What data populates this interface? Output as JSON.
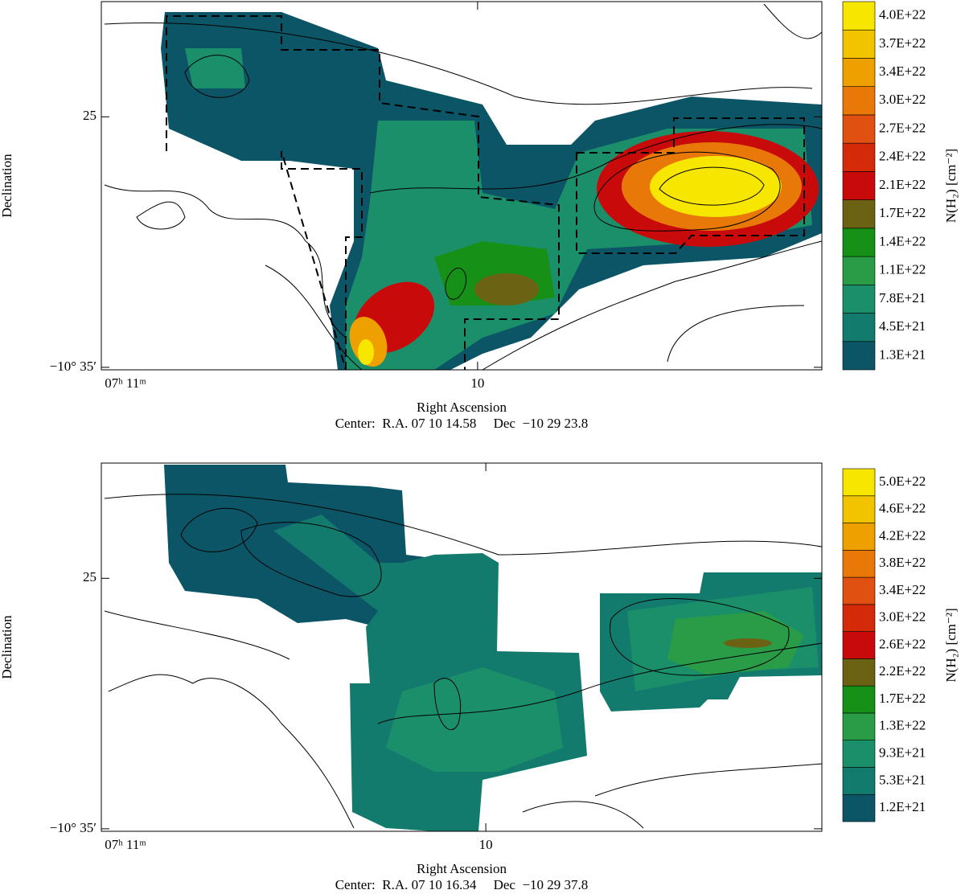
{
  "chart_data": [
    {
      "type": "contour",
      "x_label": "Right Ascension",
      "y_label": "Declination",
      "caption": "Center:  R.A. 07 10 14.58     Dec  −10 29 23.8",
      "xlim": [
        11,
        9.085
      ],
      "xticks": [
        {
          "value": 11,
          "label": "07ʰ 11ᵐ"
        },
        10
      ],
      "ylim": [
        35.1,
        20.4
      ],
      "yticks": [
        25,
        {
          "value": 35,
          "label": "−10° 35′"
        }
      ],
      "colorbar": {
        "label": "N(H₂) [cm⁻²]",
        "levels": [
          {
            "value": 1.3e+21,
            "label": "1.3E+21"
          },
          {
            "value": 4.5e+21,
            "label": "4.5E+21"
          },
          {
            "value": 7.8e+21,
            "label": "7.8E+21"
          },
          {
            "value": 1.1e+22,
            "label": "1.1E+22"
          },
          {
            "value": 1.4e+22,
            "label": "1.4E+22"
          },
          {
            "value": 1.7e+22,
            "label": "1.7E+22"
          },
          {
            "value": 2.1e+22,
            "label": "2.1E+22"
          },
          {
            "value": 2.4e+22,
            "label": "2.4E+22"
          },
          {
            "value": 2.7e+22,
            "label": "2.7E+22"
          },
          {
            "value": 3e+22,
            "label": "3.0E+22"
          },
          {
            "value": 3.4e+22,
            "label": "3.4E+22"
          },
          {
            "value": 3.7e+22,
            "label": "3.7E+22"
          },
          {
            "value": 4e+22,
            "label": "4.0E+22"
          }
        ],
        "colors": [
          "#0b5566",
          "#137a6e",
          "#1b8f6a",
          "#2a9c48",
          "#179017",
          "#6b6214",
          "#c80a0a",
          "#d42a0a",
          "#e05010",
          "#e87808",
          "#eea000",
          "#f2c400",
          "#f7e600"
        ]
      }
    },
    {
      "type": "contour",
      "x_label": "Right Ascension",
      "y_label": "Declination",
      "caption": "Center:  R.A. 07 10 16.34     Dec  −10 29 37.8",
      "xlim": [
        11,
        9.126
      ],
      "xticks": [
        {
          "value": 11,
          "label": "07ʰ 11ᵐ"
        },
        10
      ],
      "ylim": [
        35.1,
        20.4
      ],
      "yticks": [
        25,
        {
          "value": 35,
          "label": "−10° 35′"
        }
      ],
      "colorbar": {
        "label": "N(H₂) [cm⁻²]",
        "levels": [
          {
            "value": 1.2e+21,
            "label": "1.2E+21"
          },
          {
            "value": 5.3e+21,
            "label": "5.3E+21"
          },
          {
            "value": 9.3e+21,
            "label": "9.3E+21"
          },
          {
            "value": 1.3e+22,
            "label": "1.3E+22"
          },
          {
            "value": 1.7e+22,
            "label": "1.7E+22"
          },
          {
            "value": 2.2e+22,
            "label": "2.2E+22"
          },
          {
            "value": 2.6e+22,
            "label": "2.6E+22"
          },
          {
            "value": 3e+22,
            "label": "3.0E+22"
          },
          {
            "value": 3.4e+22,
            "label": "3.4E+22"
          },
          {
            "value": 3.8e+22,
            "label": "3.8E+22"
          },
          {
            "value": 4.2e+22,
            "label": "4.2E+22"
          },
          {
            "value": 4.6e+22,
            "label": "4.6E+22"
          },
          {
            "value": 5e+22,
            "label": "5.0E+22"
          }
        ],
        "colors": [
          "#0b5566",
          "#137a6e",
          "#1b8f6a",
          "#2a9c48",
          "#179017",
          "#6b6214",
          "#c80a0a",
          "#d42a0a",
          "#e05010",
          "#e87808",
          "#eea000",
          "#f2c400",
          "#f7e600"
        ]
      }
    }
  ]
}
